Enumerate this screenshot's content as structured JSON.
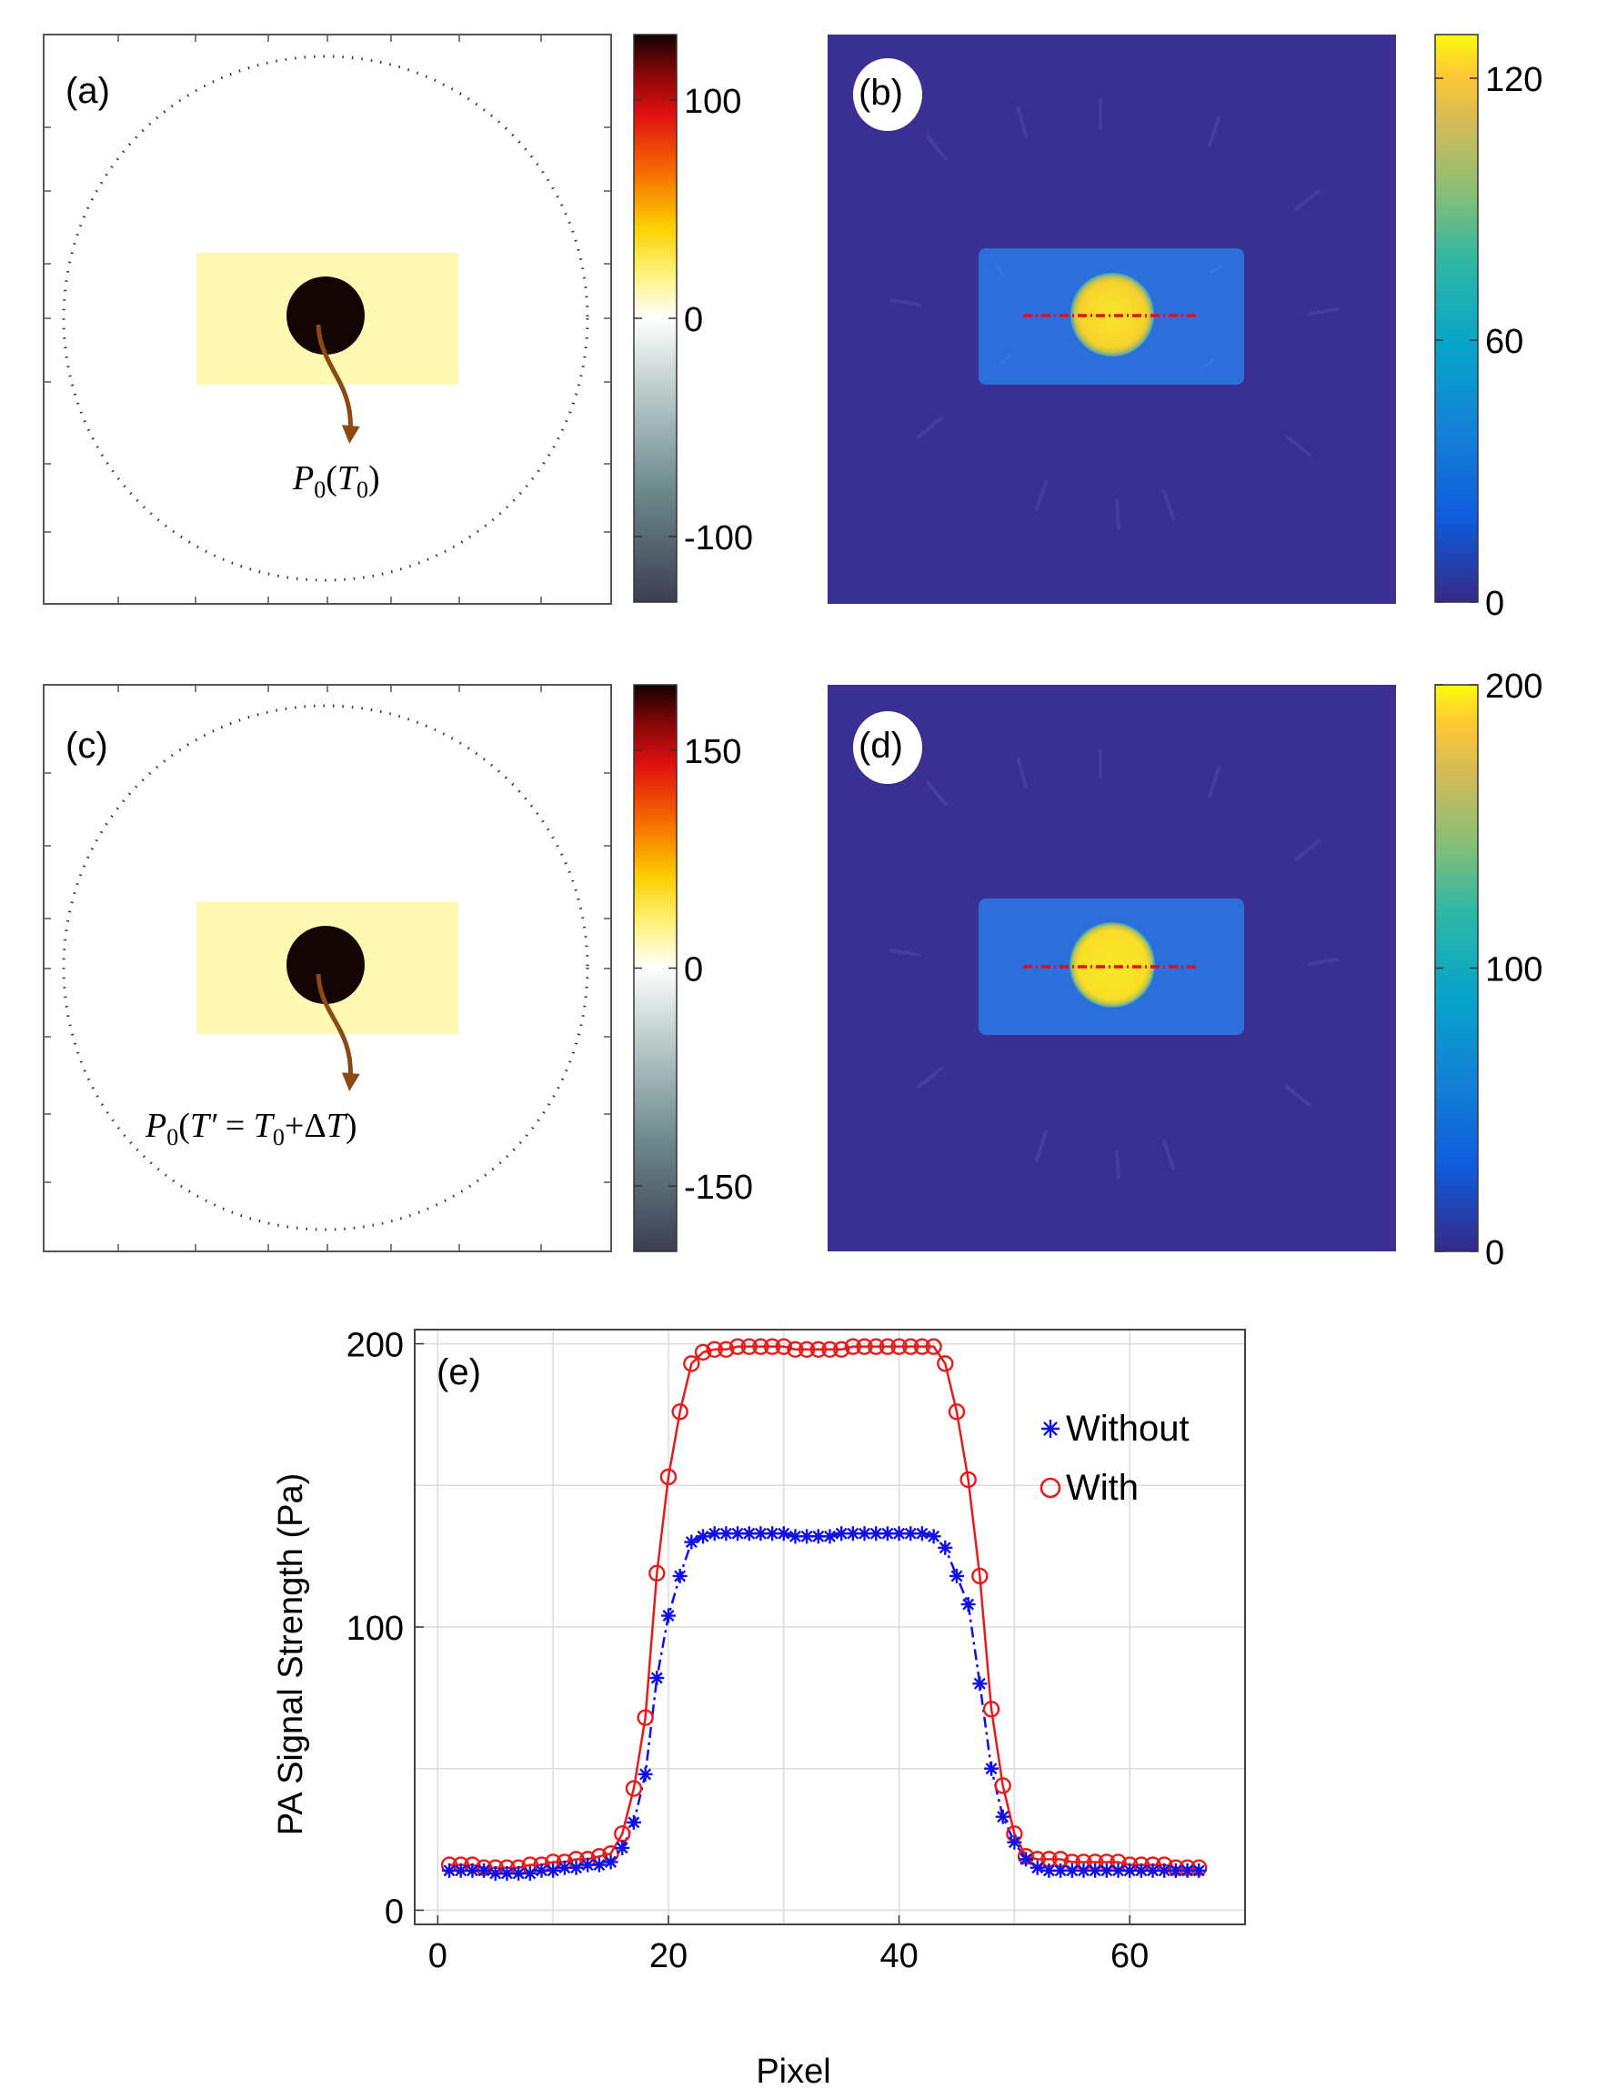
{
  "panel_a": {
    "label": "(a)",
    "annotation": "P0(T0)",
    "colorbar": {
      "ticks": [
        "100",
        "0",
        "-100"
      ],
      "tick_values": [
        100,
        0,
        -100
      ],
      "range": [
        -130,
        130
      ]
    }
  },
  "panel_b": {
    "label": "(b)",
    "colorbar": {
      "ticks": [
        "120",
        "60",
        "0"
      ],
      "tick_values": [
        120,
        60,
        0
      ],
      "range": [
        0,
        130
      ]
    }
  },
  "panel_c": {
    "label": "(c)",
    "annotation": "P0(T′ = T0+ΔT)",
    "colorbar": {
      "ticks": [
        "150",
        "0",
        "-150"
      ],
      "tick_values": [
        150,
        0,
        -150
      ],
      "range": [
        -195,
        195
      ]
    }
  },
  "panel_d": {
    "label": "(d)",
    "colorbar": {
      "ticks": [
        "200",
        "100",
        "0"
      ],
      "tick_values": [
        200,
        100,
        0
      ],
      "range": [
        0,
        200
      ]
    }
  },
  "colors": {
    "rect_fill": "#fff9b4",
    "dark_disc": "#150404",
    "arrow": "#8c4a12",
    "parula_bg": "#3a2f92",
    "parula_rect": "#2c6fda",
    "parula_disc": "#f8e42a",
    "profile_line": "#e01010",
    "without": "#1010e6",
    "with": "#e61b1b"
  },
  "chart_data": {
    "type": "line",
    "title": "(e)",
    "xlabel": "Pixel",
    "ylabel": "PA Signal Strength (Pa)",
    "xlim": [
      -2,
      70
    ],
    "ylim": [
      -5,
      205
    ],
    "xticks": [
      0,
      20,
      40,
      60
    ],
    "yticks": [
      0,
      100,
      200
    ],
    "xtick_labels": [
      "0",
      "20",
      "40",
      "60"
    ],
    "ytick_labels": [
      "0",
      "100",
      "200"
    ],
    "grid": true,
    "legend": "top-right",
    "x": [
      1,
      2,
      3,
      4,
      5,
      6,
      7,
      8,
      9,
      10,
      11,
      12,
      13,
      14,
      15,
      16,
      17,
      18,
      19,
      20,
      21,
      22,
      23,
      24,
      25,
      26,
      27,
      28,
      29,
      30,
      31,
      32,
      33,
      34,
      35,
      36,
      37,
      38,
      39,
      40,
      41,
      42,
      43,
      44,
      45,
      46,
      47,
      48,
      49,
      50,
      51,
      52,
      53,
      54,
      55,
      56,
      57,
      58,
      59,
      60,
      61,
      62,
      63,
      64,
      65,
      66
    ],
    "series": [
      {
        "name": "Without",
        "marker": "asterisk",
        "line": "dash-dot",
        "values": [
          14,
          14,
          14,
          14,
          13,
          13,
          13,
          13,
          14,
          14,
          15,
          15,
          16,
          16,
          17,
          22,
          31,
          48,
          82,
          104,
          118,
          130,
          132,
          133,
          133,
          133,
          133,
          133,
          133,
          133,
          132,
          132,
          132,
          132,
          133,
          133,
          133,
          133,
          133,
          133,
          133,
          133,
          132,
          128,
          118,
          108,
          80,
          50,
          33,
          24,
          18,
          15,
          14,
          14,
          14,
          14,
          14,
          14,
          14,
          14,
          14,
          14,
          14,
          14,
          14,
          14
        ]
      },
      {
        "name": "With",
        "marker": "circle",
        "line": "solid",
        "values": [
          16,
          16,
          16,
          15,
          15,
          15,
          15,
          16,
          16,
          17,
          17,
          18,
          18,
          19,
          20,
          27,
          43,
          68,
          119,
          153,
          176,
          193,
          197,
          198,
          198,
          199,
          199,
          199,
          199,
          199,
          198,
          198,
          198,
          198,
          198,
          199,
          199,
          199,
          199,
          199,
          199,
          199,
          199,
          193,
          176,
          152,
          118,
          71,
          44,
          27,
          19,
          18,
          18,
          18,
          17,
          17,
          17,
          17,
          17,
          16,
          16,
          16,
          16,
          15,
          15,
          15
        ]
      }
    ]
  }
}
